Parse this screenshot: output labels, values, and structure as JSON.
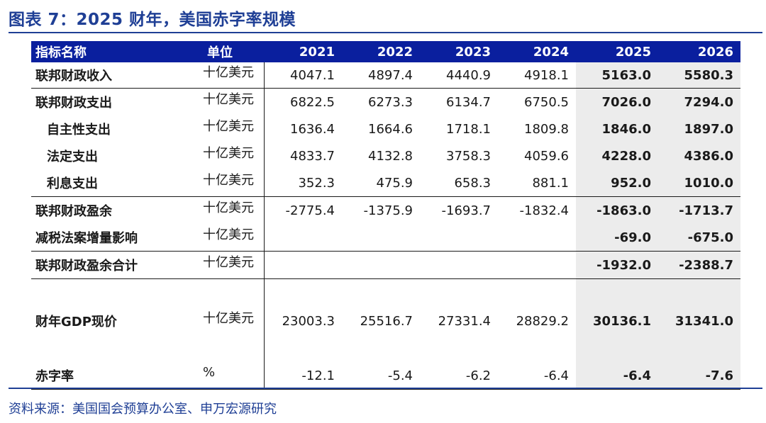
{
  "title": "图表 7：2025 财年，美国赤字率规模",
  "header": {
    "name": "指标名称",
    "unit": "单位",
    "years": [
      "2021",
      "2022",
      "2023",
      "2024",
      "2025",
      "2026"
    ]
  },
  "rows": [
    {
      "name": "联邦财政收入",
      "unit": "十亿美元",
      "v": [
        "4047.1",
        "4897.4",
        "4440.9",
        "4918.1",
        "5163.0",
        "5580.3"
      ]
    },
    {
      "name": "联邦财政支出",
      "unit": "十亿美元",
      "v": [
        "6822.5",
        "6273.3",
        "6134.7",
        "6750.5",
        "7026.0",
        "7294.0"
      ]
    },
    {
      "name": "自主性支出",
      "unit": "十亿美元",
      "v": [
        "1636.4",
        "1664.6",
        "1718.1",
        "1809.8",
        "1846.0",
        "1897.0"
      ]
    },
    {
      "name": "法定支出",
      "unit": "十亿美元",
      "v": [
        "4833.7",
        "4132.8",
        "3758.3",
        "4059.6",
        "4228.0",
        "4386.0"
      ]
    },
    {
      "name": "利息支出",
      "unit": "十亿美元",
      "v": [
        "352.3",
        "475.9",
        "658.3",
        "881.1",
        "952.0",
        "1010.0"
      ]
    },
    {
      "name": "联邦财政盈余",
      "unit": "十亿美元",
      "v": [
        "-2775.4",
        "-1375.9",
        "-1693.7",
        "-1832.4",
        "-1863.0",
        "-1713.7"
      ]
    },
    {
      "name": "减税法案增量影响",
      "unit": "十亿美元",
      "v": [
        "",
        "",
        "",
        "",
        "-69.0",
        "-675.0"
      ]
    },
    {
      "name": "联邦财政盈余合计",
      "unit": "十亿美元",
      "v": [
        "",
        "",
        "",
        "",
        "-1932.0",
        "-2388.7"
      ]
    },
    {
      "name": "财年GDP现价",
      "unit": "十亿美元",
      "v": [
        "23003.3",
        "25516.7",
        "27331.4",
        "28829.2",
        "30136.1",
        "31341.0"
      ]
    },
    {
      "name": "赤字率",
      "unit": "%",
      "v": [
        "-12.1",
        "-5.4",
        "-6.2",
        "-6.4",
        "-6.4",
        "-7.6"
      ]
    }
  ],
  "source": "资料来源：美国国会预算办公室、申万宏源研究",
  "colors": {
    "brand": "#1f3f95",
    "header_bg": "#0a1f9e",
    "forecast_bg": "#ececec"
  }
}
